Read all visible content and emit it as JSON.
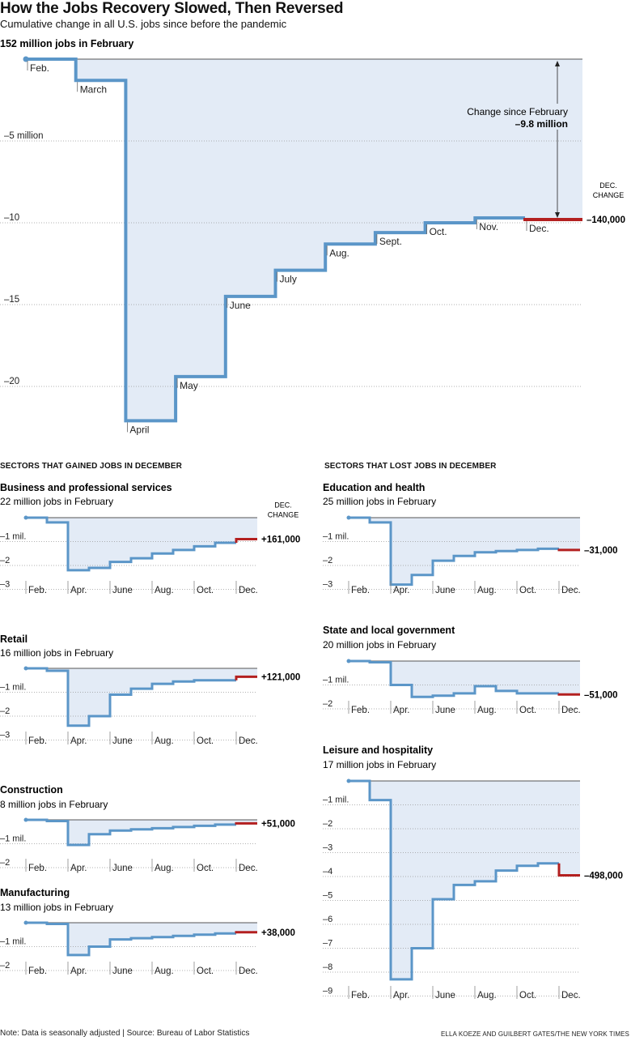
{
  "title": "How the Jobs Recovery Slowed, Then Reversed",
  "subtitle": "Cumulative change in all U.S. jobs since before the pandemic",
  "note": "Note: Data is seasonally adjusted | Source: Bureau of Labor Statistics",
  "credit": "ELLA KOEZE AND GUILBERT GATES/THE NEW YORK TIMES",
  "sections": {
    "gained": "SECTORS THAT GAINED JOBS IN DECEMBER",
    "lost": "SECTORS THAT LOST JOBS IN DECEMBER"
  },
  "colors": {
    "line": "#5b96c8",
    "fill": "#e3ebf6",
    "dec_line": "#b32020",
    "grid": "#999999"
  },
  "chart_data": [
    {
      "type": "line",
      "step": true,
      "title": "",
      "baseline_label": "152 million jobs in February",
      "x": [
        "Feb.",
        "March",
        "April",
        "May",
        "June",
        "July",
        "Aug.",
        "Sept.",
        "Oct.",
        "Nov.",
        "Dec."
      ],
      "values": [
        0,
        -1.3,
        -22.1,
        -19.4,
        -14.5,
        -12.9,
        -11.3,
        -10.6,
        -10.0,
        -9.7,
        -9.8
      ],
      "ylim": [
        -22.5,
        0
      ],
      "yticks": [
        {
          "v": -5,
          "label": "–5 million"
        },
        {
          "v": -10,
          "label": "–10"
        },
        {
          "v": -15,
          "label": "–15"
        },
        {
          "v": -20,
          "label": "–20"
        }
      ],
      "annotation": {
        "label": "Change since February",
        "value": "–9.8 million"
      },
      "dec_header": [
        "DEC.",
        "CHANGE"
      ],
      "dec_change": "–140,000"
    },
    {
      "type": "line",
      "step": true,
      "title": "Business and professional services",
      "baseline_label": "22 million jobs in February",
      "x": [
        "Feb.",
        "March",
        "Apr.",
        "May",
        "June",
        "July",
        "Aug.",
        "Sept.",
        "Oct.",
        "Nov.",
        "Dec."
      ],
      "values": [
        0,
        -0.2,
        -2.2,
        -2.1,
        -1.85,
        -1.7,
        -1.5,
        -1.35,
        -1.2,
        -1.05,
        -0.9
      ],
      "yticks": [
        {
          "v": -1,
          "label": "–1 mil."
        },
        {
          "v": -2,
          "label": "–2"
        },
        {
          "v": -3,
          "label": "–3"
        }
      ],
      "dec_header": [
        "DEC.",
        "CHANGE"
      ],
      "dec_change": "+161,000"
    },
    {
      "type": "line",
      "step": true,
      "title": "Retail",
      "baseline_label": "16 million jobs in February",
      "x": [
        "Feb.",
        "March",
        "Apr.",
        "May",
        "June",
        "July",
        "Aug.",
        "Sept.",
        "Oct.",
        "Nov.",
        "Dec."
      ],
      "values": [
        0,
        -0.1,
        -2.4,
        -2.0,
        -1.1,
        -0.85,
        -0.65,
        -0.55,
        -0.5,
        -0.5,
        -0.35
      ],
      "yticks": [
        {
          "v": -1,
          "label": "–1 mil."
        },
        {
          "v": -2,
          "label": "–2"
        },
        {
          "v": -3,
          "label": "–3"
        }
      ],
      "dec_change": "+121,000"
    },
    {
      "type": "line",
      "step": true,
      "title": "Construction",
      "baseline_label": "8 million jobs in February",
      "x": [
        "Feb.",
        "March",
        "Apr.",
        "May",
        "June",
        "July",
        "Aug.",
        "Sept.",
        "Oct.",
        "Nov.",
        "Dec."
      ],
      "values": [
        0,
        -0.05,
        -1.05,
        -0.6,
        -0.45,
        -0.4,
        -0.35,
        -0.3,
        -0.25,
        -0.2,
        -0.15
      ],
      "yticks": [
        {
          "v": -1,
          "label": "–1 mil."
        },
        {
          "v": -2,
          "label": "–2"
        }
      ],
      "dec_change": "+51,000"
    },
    {
      "type": "line",
      "step": true,
      "title": "Manufacturing",
      "baseline_label": "13 million jobs in February",
      "x": [
        "Feb.",
        "March",
        "Apr.",
        "May",
        "June",
        "July",
        "Aug.",
        "Sept.",
        "Oct.",
        "Nov.",
        "Dec."
      ],
      "values": [
        0,
        -0.05,
        -1.35,
        -1.0,
        -0.7,
        -0.65,
        -0.6,
        -0.55,
        -0.5,
        -0.45,
        -0.4
      ],
      "yticks": [
        {
          "v": -1,
          "label": "–1 mil."
        },
        {
          "v": -2,
          "label": "–2"
        }
      ],
      "dec_change": "+38,000"
    },
    {
      "type": "line",
      "step": true,
      "title": "Education and health",
      "baseline_label": "25 million jobs in February",
      "x": [
        "Feb.",
        "March",
        "Apr.",
        "May",
        "June",
        "July",
        "Aug.",
        "Sept.",
        "Oct.",
        "Nov.",
        "Dec."
      ],
      "values": [
        0,
        -0.2,
        -2.8,
        -2.4,
        -1.8,
        -1.6,
        -1.45,
        -1.4,
        -1.35,
        -1.3,
        -1.35
      ],
      "yticks": [
        {
          "v": -1,
          "label": "–1 mil."
        },
        {
          "v": -2,
          "label": "–2"
        },
        {
          "v": -3,
          "label": "–3"
        }
      ],
      "dec_change": "–31,000"
    },
    {
      "type": "line",
      "step": true,
      "title": "State and local government",
      "baseline_label": "20 million jobs in February",
      "x": [
        "Feb.",
        "March",
        "Apr.",
        "May",
        "June",
        "July",
        "Aug.",
        "Sept.",
        "Oct.",
        "Nov.",
        "Dec."
      ],
      "values": [
        0,
        -0.05,
        -1.0,
        -1.5,
        -1.45,
        -1.35,
        -1.05,
        -1.25,
        -1.35,
        -1.35,
        -1.4
      ],
      "yticks": [
        {
          "v": -1,
          "label": "–1 mil."
        },
        {
          "v": -2,
          "label": "–2"
        }
      ],
      "dec_change": "–51,000"
    },
    {
      "type": "line",
      "step": true,
      "title": "Leisure and hospitality",
      "baseline_label": "17 million jobs in February",
      "x": [
        "Feb.",
        "March",
        "Apr.",
        "May",
        "June",
        "July",
        "Aug.",
        "Sept.",
        "Oct.",
        "Nov.",
        "Dec."
      ],
      "values": [
        0,
        -0.8,
        -8.3,
        -7.0,
        -4.95,
        -4.35,
        -4.2,
        -3.75,
        -3.55,
        -3.45,
        -3.95
      ],
      "yticks": [
        {
          "v": -1,
          "label": "–1 mil."
        },
        {
          "v": -2,
          "label": "–2"
        },
        {
          "v": -3,
          "label": "–3"
        },
        {
          "v": -4,
          "label": "–4"
        },
        {
          "v": -5,
          "label": "–5"
        },
        {
          "v": -6,
          "label": "–6"
        },
        {
          "v": -7,
          "label": "–7"
        },
        {
          "v": -8,
          "label": "–8"
        },
        {
          "v": -9,
          "label": "–9"
        }
      ],
      "dec_change": "–498,000"
    }
  ]
}
